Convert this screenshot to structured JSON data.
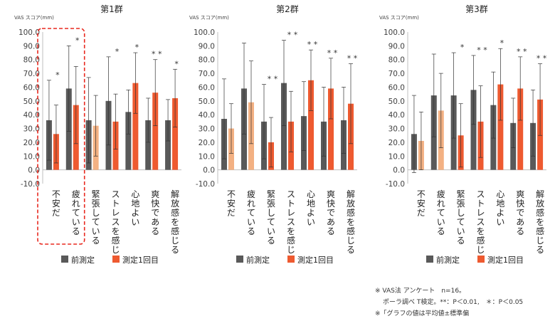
{
  "colors": {
    "pre": "#595959",
    "post": "#ee5a30",
    "post_light": "#f3b183",
    "highlight": "#e8281e",
    "axis": "#bfbfbf",
    "text": "#404040"
  },
  "chart_data": [
    {
      "type": "bar",
      "title": "第1群",
      "ylabel": "VAS スコア(mm)",
      "ylim": [
        -10,
        100
      ],
      "yticks": [
        "100.0",
        "90.0",
        "80.0",
        "70.0",
        "60.0",
        "50.0",
        "40.0",
        "30.0",
        "20.0",
        "10.0",
        "0.0",
        "-10.0"
      ],
      "categories": [
        "不安だ",
        "疲れている",
        "緊張している",
        "ストレスを感じる",
        "心地よい",
        "爽快である",
        "解放感を感じる"
      ],
      "series": [
        {
          "name": "前測定",
          "values": [
            36,
            59,
            36,
            50,
            42,
            36,
            36
          ],
          "errors": [
            29,
            31,
            31,
            32,
            16,
            16,
            15
          ]
        },
        {
          "name": "測定1回目",
          "values": [
            26,
            47,
            32,
            35,
            63,
            56,
            52
          ],
          "errors": [
            21,
            28,
            22,
            20,
            22,
            24,
            21
          ]
        }
      ],
      "significance": [
        "*",
        "*",
        "",
        "*",
        "*",
        "**",
        "*"
      ],
      "light_post": [
        false,
        false,
        true,
        false,
        false,
        false,
        false
      ],
      "highlight_categories": [
        0,
        1
      ],
      "grid": false,
      "legend": "bottom"
    },
    {
      "type": "bar",
      "title": "第2群",
      "ylabel": "VAS スコア(mm)",
      "ylim": [
        -10,
        100
      ],
      "yticks": [
        "100.0",
        "90.0",
        "80.0",
        "70.0",
        "60.0",
        "50.0",
        "40.0",
        "30.0",
        "20.0",
        "10.0",
        "0.0",
        "-10.0"
      ],
      "categories": [
        "不安だ",
        "疲れている",
        "緊張している",
        "ストレスを感じる",
        "心地よい",
        "爽快である",
        "解放感を感じる"
      ],
      "series": [
        {
          "name": "前測定",
          "values": [
            37,
            59,
            35,
            63,
            39,
            35,
            36
          ],
          "errors": [
            29,
            33,
            27,
            31,
            25,
            25,
            24
          ]
        },
        {
          "name": "測定1回目",
          "values": [
            30,
            49,
            20,
            35,
            65,
            59,
            48
          ],
          "errors": [
            18,
            30,
            18,
            22,
            22,
            22,
            29
          ]
        }
      ],
      "significance": [
        "",
        "",
        "**",
        "**",
        "**",
        "**",
        "**"
      ],
      "light_post": [
        true,
        true,
        false,
        false,
        false,
        false,
        false
      ],
      "highlight_categories": [],
      "grid": false,
      "legend": "bottom"
    },
    {
      "type": "bar",
      "title": "第3群",
      "ylabel": "VAS スコア(mm)",
      "ylim": [
        -10,
        100
      ],
      "yticks": [
        "100.0",
        "90.0",
        "80.0",
        "70.0",
        "60.0",
        "50.0",
        "40.0",
        "30.0",
        "20.0",
        "10.0",
        "0.0",
        "-10.0"
      ],
      "categories": [
        "不安だ",
        "疲れている",
        "緊張している",
        "ストレスを感じる",
        "心地よい",
        "爽快である",
        "解放感を感じる"
      ],
      "series": [
        {
          "name": "前測定",
          "values": [
            26,
            54,
            54,
            58,
            47,
            34,
            34
          ],
          "errors": [
            28,
            30,
            31,
            25,
            24,
            18,
            24
          ]
        },
        {
          "name": "測定1回目",
          "values": [
            21,
            43,
            25,
            35,
            62,
            59,
            51
          ],
          "errors": [
            21,
            27,
            23,
            26,
            26,
            23,
            26
          ]
        }
      ],
      "significance": [
        "",
        "",
        "*",
        "**",
        "*",
        "**",
        "**"
      ],
      "light_post": [
        true,
        true,
        false,
        false,
        false,
        false,
        false
      ],
      "highlight_categories": [],
      "grid": false,
      "legend": "bottom"
    }
  ],
  "notes": {
    "line1": "※ VAS法 アンケート　n=16。",
    "line2": "ポーラ調べ T検定。**：P＜0.01,　＊：P＜0.05",
    "line3": "※「グラフの値は平均値±標準偏"
  }
}
